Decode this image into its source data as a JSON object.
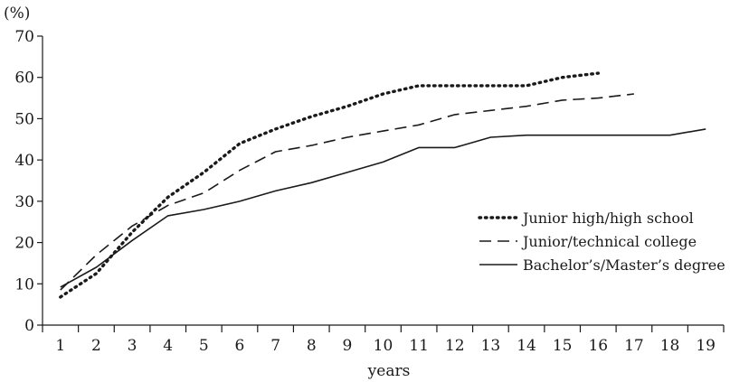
{
  "chart_data": {
    "type": "line",
    "xlabel": "years",
    "ylabel": "(%)",
    "x": [
      1,
      2,
      3,
      4,
      5,
      6,
      7,
      8,
      9,
      10,
      11,
      12,
      13,
      14,
      15,
      16,
      17,
      18,
      19
    ],
    "ylim": [
      0,
      70
    ],
    "yticks": [
      0,
      10,
      20,
      30,
      40,
      50,
      60,
      70
    ],
    "grid": false,
    "legend_position": "right",
    "series": [
      {
        "name": "Junior high/high school",
        "style": "dotted",
        "color": "#1a1a1a",
        "x": [
          1,
          2,
          3,
          4,
          5,
          6,
          7,
          8,
          9,
          10,
          11,
          12,
          13,
          14,
          15,
          16
        ],
        "values": [
          6.8,
          12.5,
          22.5,
          31,
          37,
          44,
          47.5,
          50.5,
          53,
          56,
          58,
          58,
          58,
          58,
          60,
          61
        ]
      },
      {
        "name": "Junior/technical college",
        "style": "dashed",
        "color": "#1a1a1a",
        "x": [
          1,
          2,
          3,
          4,
          5,
          6,
          7,
          8,
          9,
          10,
          11,
          12,
          13,
          14,
          15,
          16,
          17
        ],
        "values": [
          8.5,
          17,
          24,
          29,
          32,
          37.5,
          42,
          43.5,
          45.5,
          47,
          48.5,
          51,
          52,
          53,
          54.5,
          55,
          56
        ]
      },
      {
        "name": "Bachelor’s/Master’s degree",
        "style": "solid",
        "color": "#1a1a1a",
        "x": [
          1,
          2,
          3,
          4,
          5,
          6,
          7,
          8,
          9,
          10,
          11,
          12,
          13,
          14,
          15,
          16,
          17,
          18,
          19
        ],
        "values": [
          9.2,
          14,
          20.5,
          26.5,
          28,
          30,
          32.5,
          34.5,
          37,
          39.5,
          43,
          43,
          45.5,
          46,
          46,
          46,
          46,
          46,
          47.5
        ]
      }
    ]
  }
}
